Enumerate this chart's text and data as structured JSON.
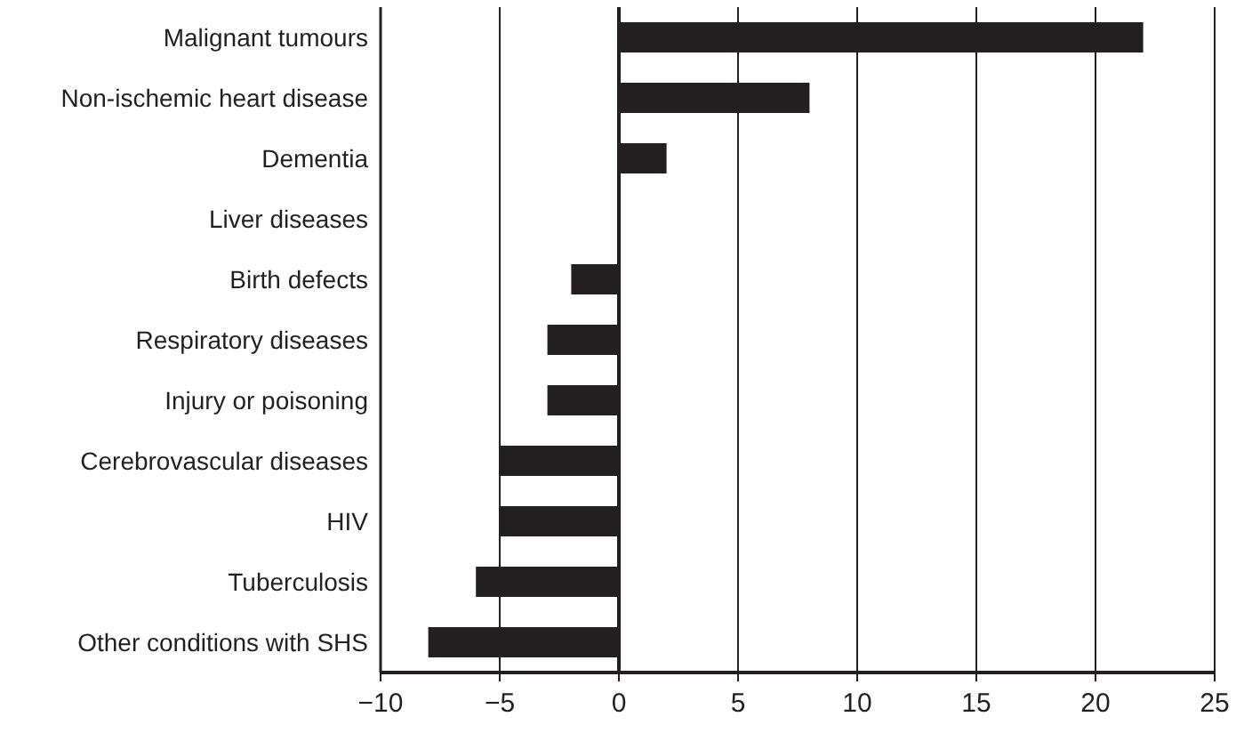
{
  "chart_data": {
    "type": "bar",
    "orientation": "horizontal",
    "categories": [
      "Malignant tumours",
      "Non-ischemic heart disease",
      "Dementia",
      "Liver diseases",
      "Birth defects",
      "Respiratory diseases",
      "Injury or poisoning",
      "Cerebrovascular diseases",
      "HIV",
      "Tuberculosis",
      "Other conditions with SHS"
    ],
    "values": [
      22,
      8,
      2,
      0,
      -2,
      -3,
      -3,
      -5,
      -5,
      -6,
      -8
    ],
    "color": "#231f20",
    "xlim": [
      -10,
      25
    ],
    "xticks": [
      {
        "value": -10,
        "label": "−10"
      },
      {
        "value": -5,
        "label": "−5"
      },
      0,
      5,
      10,
      15,
      20,
      25
    ],
    "grid": "x"
  }
}
